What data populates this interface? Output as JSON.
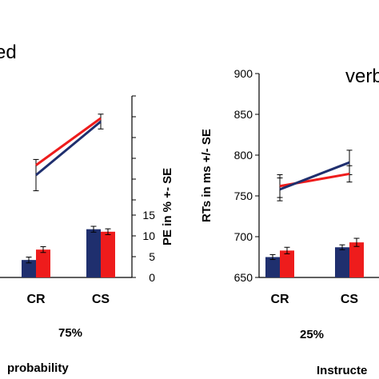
{
  "labels": {
    "left_title": "ed",
    "right_title": "verb",
    "left_percent": "75%",
    "right_percent": "25%",
    "left_bottom": "probability",
    "right_bottom": "Instructe",
    "pe_axis_label": "PE in % +- SE",
    "rt_axis_label": "RTs in ms +/- SE"
  },
  "colors": {
    "blue": "#1f2f6e",
    "red": "#ee1c1c"
  },
  "chart_data": [
    {
      "type": "line+bar",
      "categories": [
        "CR",
        "CS"
      ],
      "lines": [
        {
          "color": "red",
          "values": [
            787,
            844
          ]
        },
        {
          "color": "blue",
          "values": [
            775,
            840
          ]
        }
      ],
      "line_errors": [
        {
          "color": "red",
          "values": [
            null,
            null
          ]
        },
        {
          "color": "blue",
          "values": [
            19,
            9
          ]
        }
      ],
      "right_axis": {
        "label": "PE in % +- SE",
        "ticks": [
          "0",
          "5",
          "10",
          "15"
        ],
        "ylim": [
          0,
          15
        ]
      },
      "bars": [
        {
          "color": "blue",
          "values": [
            4.2,
            11.6
          ],
          "errors": [
            0.7,
            0.7
          ]
        },
        {
          "color": "red",
          "values": [
            6.7,
            11.0
          ],
          "errors": [
            0.7,
            0.7
          ]
        }
      ]
    },
    {
      "type": "line+bar",
      "categories": [
        "CR",
        "CS"
      ],
      "ylabel": "RTs in ms +/- SE",
      "ylim": [
        650,
        900
      ],
      "yticks": [
        "650",
        "700",
        "750",
        "800",
        "850",
        "900"
      ],
      "lines": [
        {
          "color": "red",
          "values": [
            762,
            777
          ]
        },
        {
          "color": "blue",
          "values": [
            758,
            791
          ]
        }
      ],
      "line_errors": [
        {
          "color": "red",
          "values": [
            14,
            10
          ]
        },
        {
          "color": "blue",
          "values": [
            14,
            15
          ]
        }
      ],
      "bars": [
        {
          "color": "blue",
          "values": [
            675,
            687
          ],
          "errors": [
            3,
            3
          ]
        },
        {
          "color": "red",
          "values": [
            683,
            693
          ],
          "errors": [
            4,
            5
          ]
        }
      ]
    }
  ]
}
